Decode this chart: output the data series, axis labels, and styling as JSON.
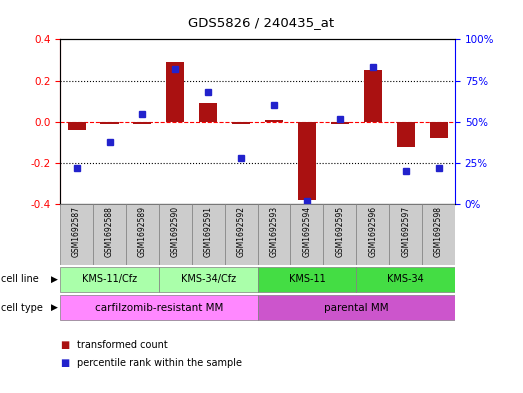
{
  "title": "GDS5826 / 240435_at",
  "samples": [
    "GSM1692587",
    "GSM1692588",
    "GSM1692589",
    "GSM1692590",
    "GSM1692591",
    "GSM1692592",
    "GSM1692593",
    "GSM1692594",
    "GSM1692595",
    "GSM1692596",
    "GSM1692597",
    "GSM1692598"
  ],
  "transformed_count": [
    -0.04,
    -0.01,
    -0.01,
    0.29,
    0.09,
    -0.01,
    0.01,
    -0.38,
    -0.01,
    0.25,
    -0.12,
    -0.08
  ],
  "percentile_rank": [
    22,
    38,
    55,
    82,
    68,
    28,
    60,
    2,
    52,
    83,
    20,
    22
  ],
  "cell_line_groups": [
    {
      "label": "KMS-11/Cfz",
      "start": 0,
      "end": 3,
      "color": "#AAFFAA"
    },
    {
      "label": "KMS-34/Cfz",
      "start": 3,
      "end": 6,
      "color": "#AAFFAA"
    },
    {
      "label": "KMS-11",
      "start": 6,
      "end": 9,
      "color": "#44DD44"
    },
    {
      "label": "KMS-34",
      "start": 9,
      "end": 12,
      "color": "#44DD44"
    }
  ],
  "cell_type_groups": [
    {
      "label": "carfilzomib-resistant MM",
      "start": 0,
      "end": 6,
      "color": "#FF88FF"
    },
    {
      "label": "parental MM",
      "start": 6,
      "end": 12,
      "color": "#CC55CC"
    }
  ],
  "bar_color": "#AA1111",
  "dot_color": "#2222CC",
  "ylim_left": [
    -0.4,
    0.4
  ],
  "ylim_right": [
    0,
    100
  ],
  "yticks_left": [
    -0.4,
    -0.2,
    0.0,
    0.2,
    0.4
  ],
  "yticks_right": [
    0,
    25,
    50,
    75,
    100
  ],
  "ytick_labels_right": [
    "0%",
    "25%",
    "50%",
    "75%",
    "100%"
  ],
  "hlines": [
    -0.2,
    0.0,
    0.2
  ],
  "sample_bg": "#CCCCCC",
  "plot_bg": "#FFFFFF"
}
